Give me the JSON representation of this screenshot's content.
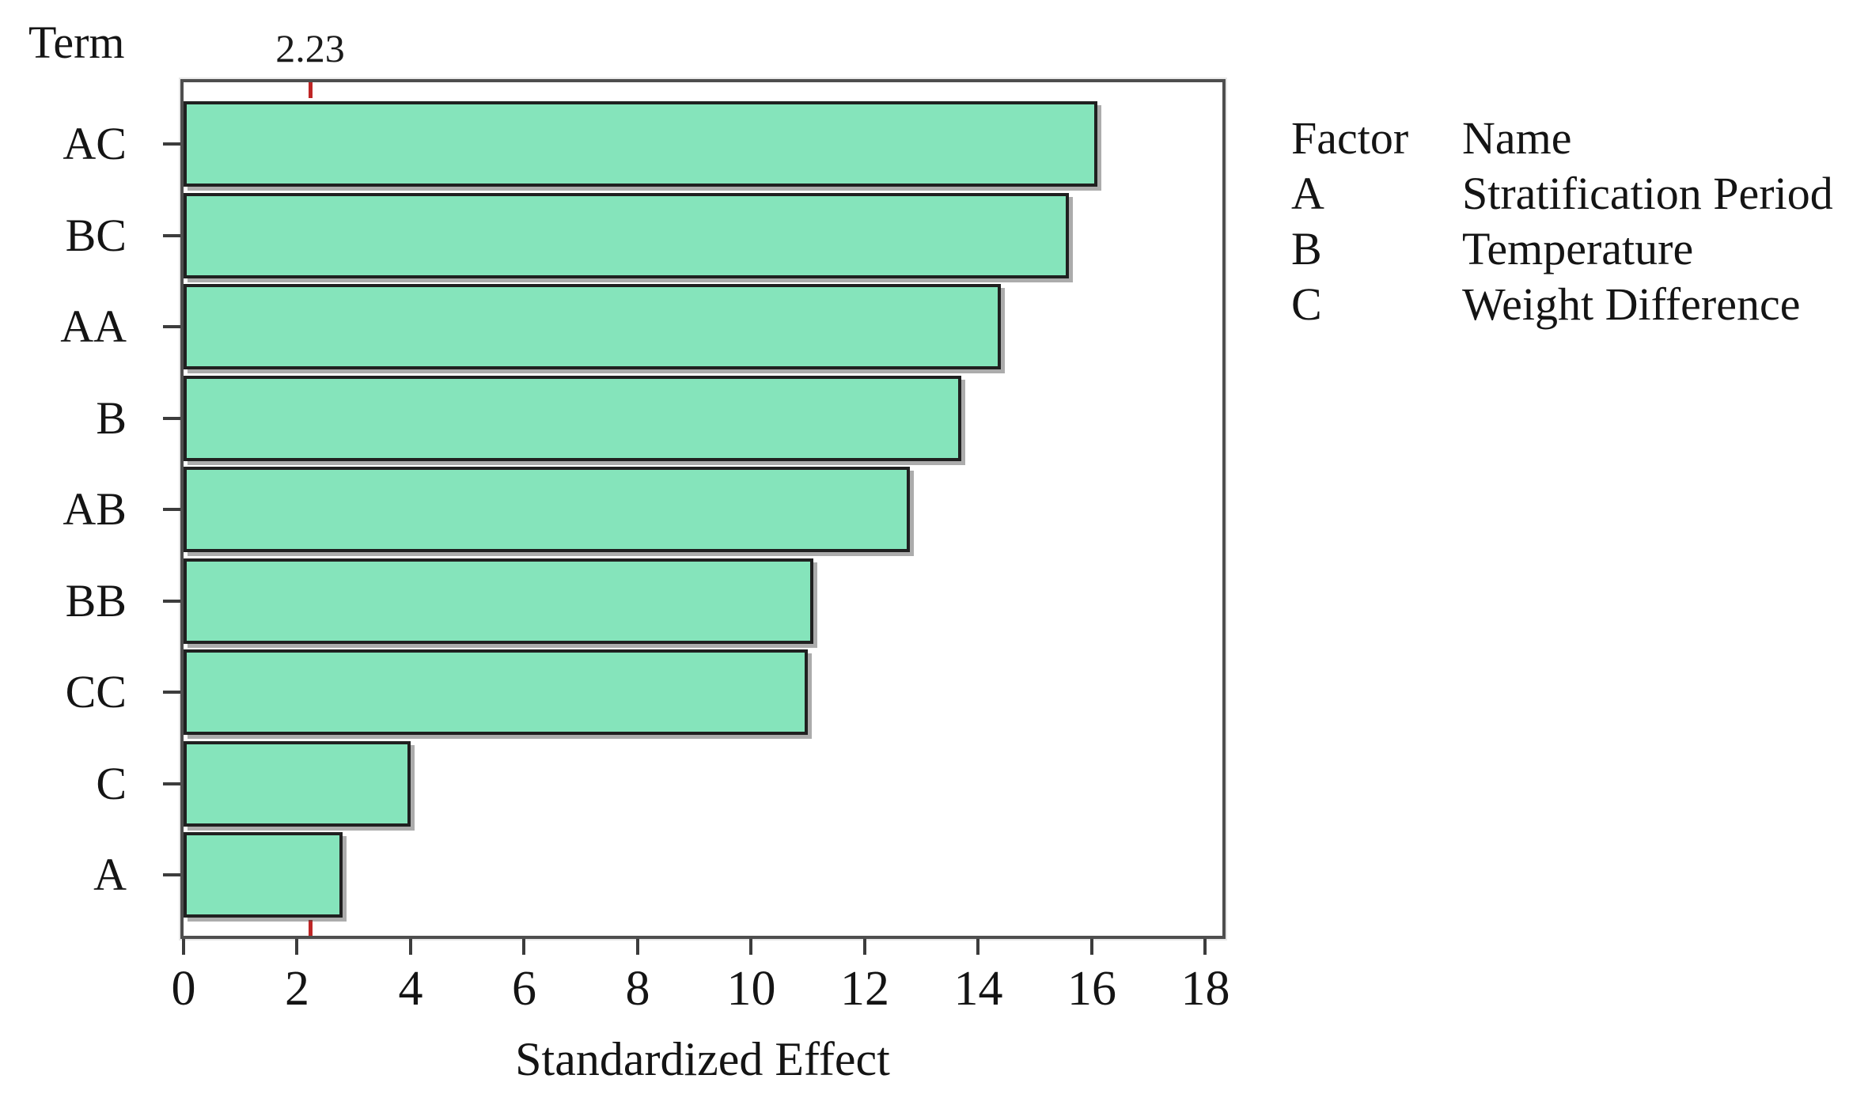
{
  "chart_data": {
    "type": "bar",
    "orientation": "horizontal",
    "y_axis_title": "Term",
    "xlabel": "Standardized Effect",
    "categories": [
      "AC",
      "BC",
      "AA",
      "B",
      "AB",
      "BB",
      "CC",
      "C",
      "A"
    ],
    "values": [
      16.1,
      15.6,
      14.4,
      13.7,
      12.8,
      11.1,
      11.0,
      4.0,
      2.8
    ],
    "xlim": [
      0,
      18.3
    ],
    "xticks": [
      0,
      2,
      4,
      6,
      8,
      10,
      12,
      14,
      16,
      18
    ],
    "reference_line": {
      "value": 2.23,
      "label": "2.23"
    },
    "grid": false,
    "legend_position": "right"
  },
  "legend": {
    "header": {
      "factor": "Factor",
      "name": "Name"
    },
    "rows": [
      {
        "factor": "A",
        "name": "Stratification Period"
      },
      {
        "factor": "B",
        "name": "Temperature"
      },
      {
        "factor": "C",
        "name": "Weight Difference"
      }
    ]
  },
  "colors": {
    "bar_fill": "#85e4bb",
    "bar_border": "#202020",
    "frame_border": "#4e4e4e",
    "tick": "#3c3c3c",
    "reference": "#bf2626",
    "text": "#141414"
  }
}
